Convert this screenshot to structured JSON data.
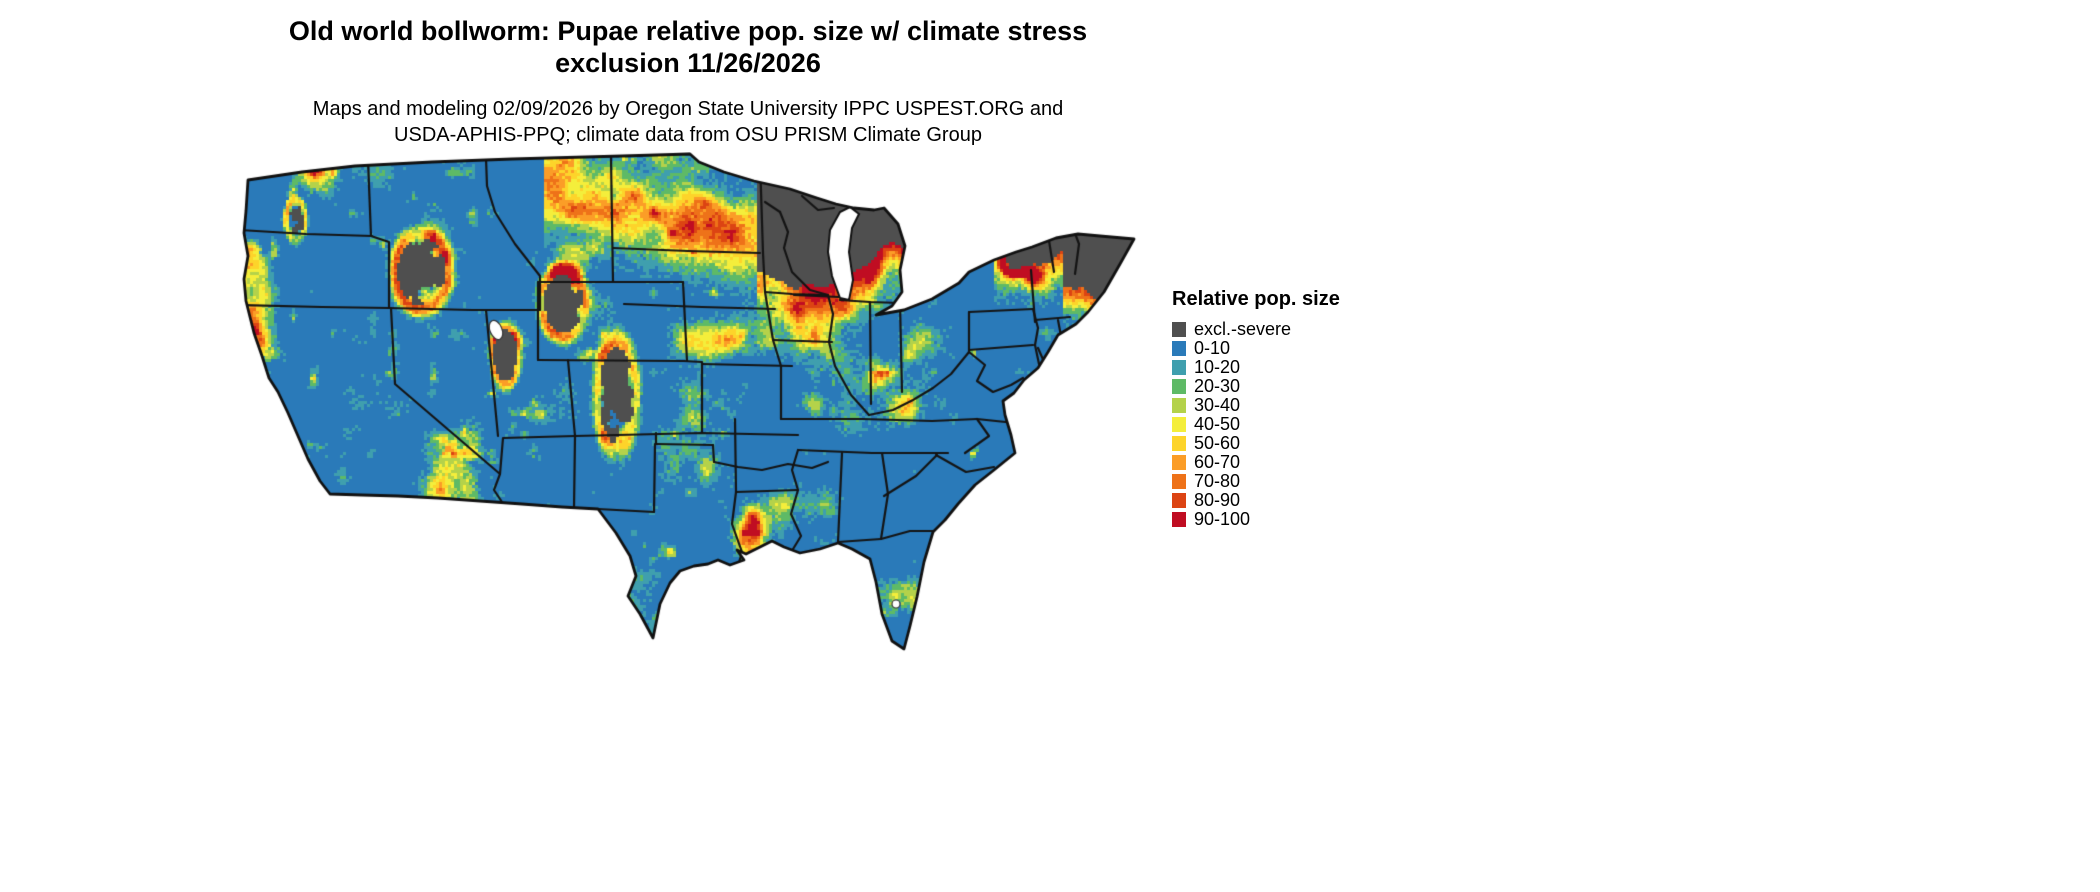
{
  "title": {
    "line1": "Old world bollworm: Pupae relative pop. size w/ climate stress",
    "line2": "exclusion 11/26/2026"
  },
  "subtitle": {
    "line1": "Maps and modeling 02/09/2026 by Oregon State University IPPC USPEST.ORG and",
    "line2": "USDA-APHIS-PPQ; climate data from OSU PRISM Climate Group"
  },
  "legend": {
    "title": "Relative pop. size",
    "items": [
      {
        "label": "excl.-severe",
        "color": "#4f4f4f"
      },
      {
        "label": "0-10",
        "color": "#2a7ab9"
      },
      {
        "label": "10-20",
        "color": "#3f9fae"
      },
      {
        "label": "20-30",
        "color": "#5eba66"
      },
      {
        "label": "30-40",
        "color": "#b4d24a"
      },
      {
        "label": "40-50",
        "color": "#f4ee3b"
      },
      {
        "label": "50-60",
        "color": "#fdd42a"
      },
      {
        "label": "60-70",
        "color": "#fb9d27"
      },
      {
        "label": "70-80",
        "color": "#ee7219"
      },
      {
        "label": "80-90",
        "color": "#dc4413"
      },
      {
        "label": "90-100",
        "color": "#c00d22"
      }
    ]
  },
  "map": {
    "border_color": "#111111"
  }
}
